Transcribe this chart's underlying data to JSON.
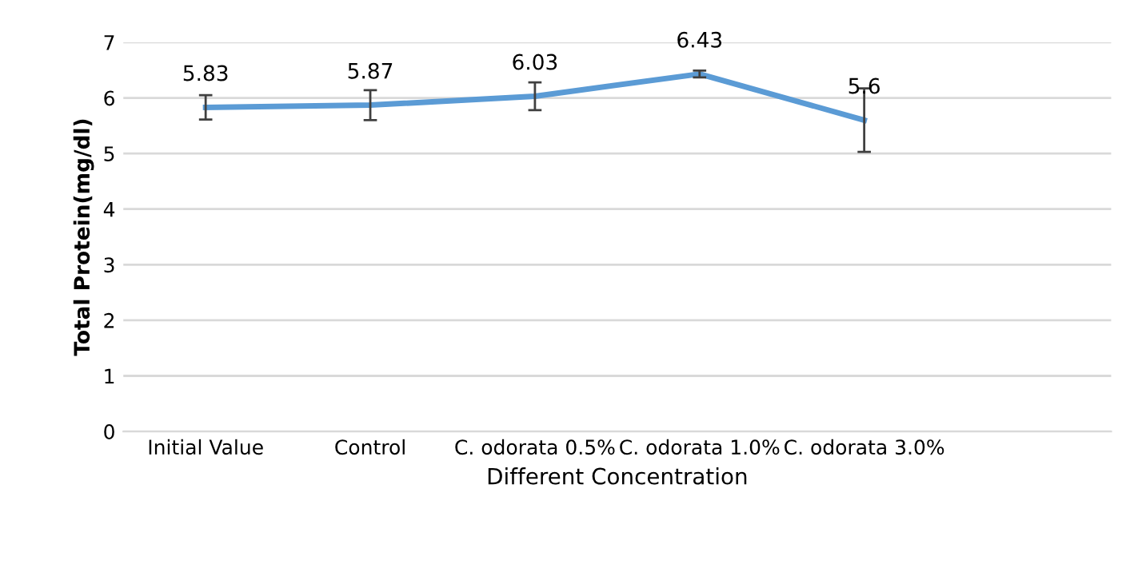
{
  "chart_data": {
    "type": "line",
    "categories": [
      "Initial Value",
      "Control",
      "C. odorata 0.5%",
      "C. odorata 1.0%",
      "C. odorata 3.0%",
      null
    ],
    "values": [
      5.83,
      5.87,
      6.03,
      6.43,
      5.6,
      null
    ],
    "errors": [
      0.22,
      0.27,
      0.25,
      0.06,
      0.57,
      null
    ],
    "color": "#5b9bd5",
    "xlabel": "Different Concentration",
    "ylabel": "Total Protein(mg/dl)",
    "ylim": [
      0,
      7
    ],
    "yticks": [
      0,
      1,
      2,
      3,
      4,
      5,
      6,
      7
    ],
    "grid": "y",
    "data_labels": true,
    "marker": "none",
    "line_style": "solid",
    "legend": false
  }
}
